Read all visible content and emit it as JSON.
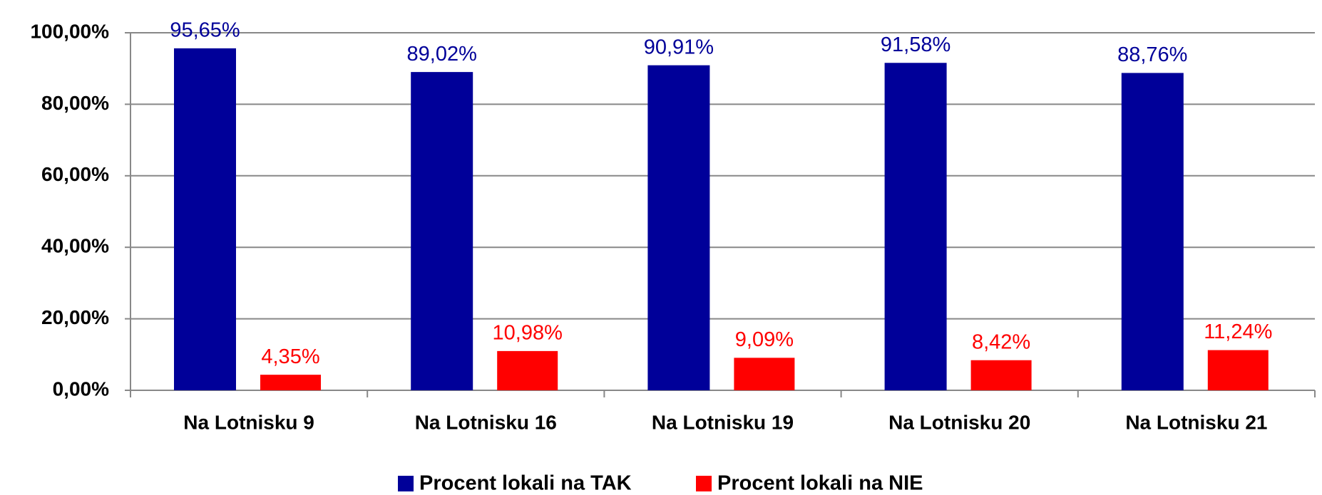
{
  "chart_data": {
    "type": "bar",
    "categories": [
      "Na Lotnisku 9",
      "Na Lotnisku 16",
      "Na Lotnisku 19",
      "Na Lotnisku 20",
      "Na Lotnisku 21"
    ],
    "series": [
      {
        "name": "Procent lokali na TAK",
        "color": "#000099",
        "values": [
          95.65,
          89.02,
          90.91,
          91.58,
          88.76
        ],
        "value_labels": [
          "95,65%",
          "89,02%",
          "90,91%",
          "91,58%",
          "88,76%"
        ]
      },
      {
        "name": "Procent lokali na NIE",
        "color": "#ff0000",
        "values": [
          4.35,
          10.98,
          9.09,
          8.42,
          11.24
        ],
        "value_labels": [
          "4,35%",
          "10,98%",
          "9,09%",
          "8,42%",
          "11,24%"
        ]
      }
    ],
    "ylim": [
      0,
      100
    ],
    "yticks": [
      {
        "value": 0,
        "label": "0,00%"
      },
      {
        "value": 20,
        "label": "20,00%"
      },
      {
        "value": 40,
        "label": "40,00%"
      },
      {
        "value": 60,
        "label": "60,00%"
      },
      {
        "value": 80,
        "label": "80,00%"
      },
      {
        "value": 100,
        "label": "100,00%"
      }
    ],
    "grid": true,
    "legend": "bottom"
  }
}
